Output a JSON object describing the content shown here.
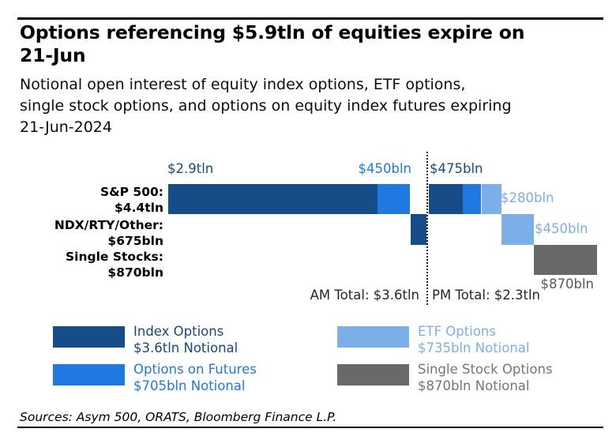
{
  "header": {
    "title_lines": [
      "Options referencing $5.9tln of equities expire on",
      "21-Jun"
    ],
    "subtitle_lines": [
      "Notional open interest of equity index options, ETF options,",
      "single stock options, and options on equity index futures expiring",
      "21-Jun-2024"
    ]
  },
  "colors": {
    "navy": "#164C87",
    "blue": "#2079E0",
    "light_blue": "#7CAFE9",
    "gray": "#696969"
  },
  "axis": {
    "rows": [
      {
        "line1": "S&P 500:",
        "line2": "$4.4tln"
      },
      {
        "line1": "NDX/RTY/Other:",
        "line2": "$675bln"
      },
      {
        "line1": "Single Stocks:",
        "line2": "$870bln"
      }
    ]
  },
  "chart_labels": {
    "am_index": "$2.9tln",
    "am_futures": "$450bln",
    "pm_index": "$475bln",
    "pm_etf_sp": "$280bln",
    "pm_etf_ndx": "$450bln",
    "pm_stock": "$870bln",
    "am_total": "AM Total: $3.6tln",
    "pm_total": "PM Total: $2.3tln"
  },
  "chart_data": {
    "type": "bar",
    "subtype": "waterfall",
    "title": "Options referencing $5.9tln of equities expire on 21-Jun",
    "unit": "bln USD notional",
    "rows": [
      {
        "label": "S&P 500:",
        "total": "$4.4tln"
      },
      {
        "label": "NDX/RTY/Other:",
        "total": "$675bln"
      },
      {
        "label": "Single Stocks:",
        "total": "$870bln"
      }
    ],
    "segments": [
      {
        "session": "AM",
        "row": 0,
        "series": "Index Options",
        "value_bln": 2900,
        "label": "$2.9tln"
      },
      {
        "session": "AM",
        "row": 0,
        "series": "Options on Futures",
        "value_bln": 450,
        "label": "$450bln"
      },
      {
        "session": "AM",
        "row": 1,
        "series": "Index Options",
        "value_bln": 225,
        "label": ""
      },
      {
        "session": "PM",
        "row": 0,
        "series": "Index Options",
        "value_bln": 475,
        "label": "$475bln"
      },
      {
        "session": "PM",
        "row": 0,
        "series": "Options on Futures",
        "value_bln": 255,
        "label": ""
      },
      {
        "session": "PM",
        "row": 0,
        "series": "ETF Options",
        "value_bln": 280,
        "label": "$280bln"
      },
      {
        "session": "PM",
        "row": 1,
        "series": "ETF Options",
        "value_bln": 450,
        "label": "$450bln"
      },
      {
        "session": "PM",
        "row": 2,
        "series": "Single Stock Options",
        "value_bln": 870,
        "label": "$870bln"
      }
    ],
    "series_colors": {
      "Index Options": "#164C87",
      "Options on Futures": "#2079E0",
      "ETF Options": "#7CAFE9",
      "Single Stock Options": "#696969"
    },
    "am_total_label": "AM Total: $3.6tln",
    "pm_total_label": "PM Total: $2.3tln",
    "divider": "dotted vertical line between AM and PM sessions",
    "legend_position": "bottom",
    "grid": false
  },
  "legend": {
    "items": [
      {
        "label": "Index Options",
        "sublabel": "$3.6tln Notional",
        "color": "#164C87",
        "text_color": "#17477E"
      },
      {
        "label": "Options on Futures",
        "sublabel": "$705bln Notional",
        "color": "#2079E0",
        "text_color": "#2079E0"
      },
      {
        "label": "ETF Options",
        "sublabel": "$735bln Notional",
        "color": "#7CAFE9",
        "text_color": "#7CAFE9"
      },
      {
        "label": "Single Stock Options",
        "sublabel": "$870bln Notional",
        "color": "#696969",
        "text_color": "#757575"
      }
    ]
  },
  "footer": {
    "source_text": "Sources: Asym 500, ORATS, Bloomberg Finance L.P."
  }
}
